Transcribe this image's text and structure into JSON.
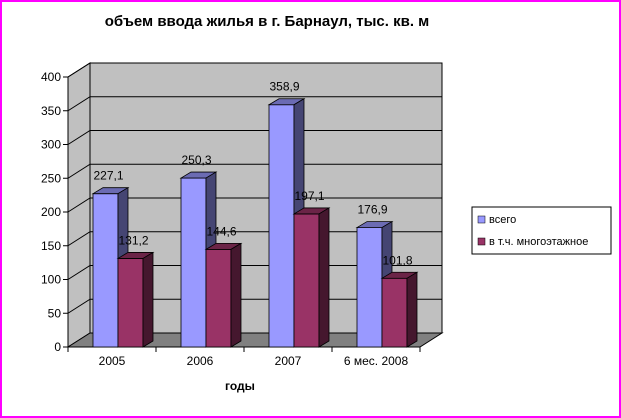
{
  "chart_data": {
    "type": "bar",
    "title": "объем ввода жилья в г. Барнаул, тыс. кв. м",
    "xlabel": "годы",
    "ylabel": "",
    "categories": [
      "2005",
      "2006",
      "2007",
      "6 мес. 2008"
    ],
    "series": [
      {
        "name": "всего",
        "values": [
          227.1,
          250.3,
          358.9,
          176.9
        ],
        "labels": [
          "227,1",
          "250,3",
          "358,9",
          "176,9"
        ],
        "color": "#9999ff"
      },
      {
        "name": "в т.ч. многоэтажное",
        "values": [
          131.2,
          144.6,
          197.1,
          101.8
        ],
        "labels": [
          "131,2",
          "144,6",
          "197,1",
          "101,8"
        ],
        "color": "#993366"
      }
    ],
    "yticks": [
      "0",
      "50",
      "100",
      "150",
      "200",
      "250",
      "300",
      "350",
      "400"
    ],
    "ylim": [
      0,
      400
    ],
    "grid": true,
    "three_d": true,
    "wall_color": "#c0c0c0",
    "floor_color": "#808080",
    "legend_position": "right",
    "border_color": "#ff00ff"
  }
}
